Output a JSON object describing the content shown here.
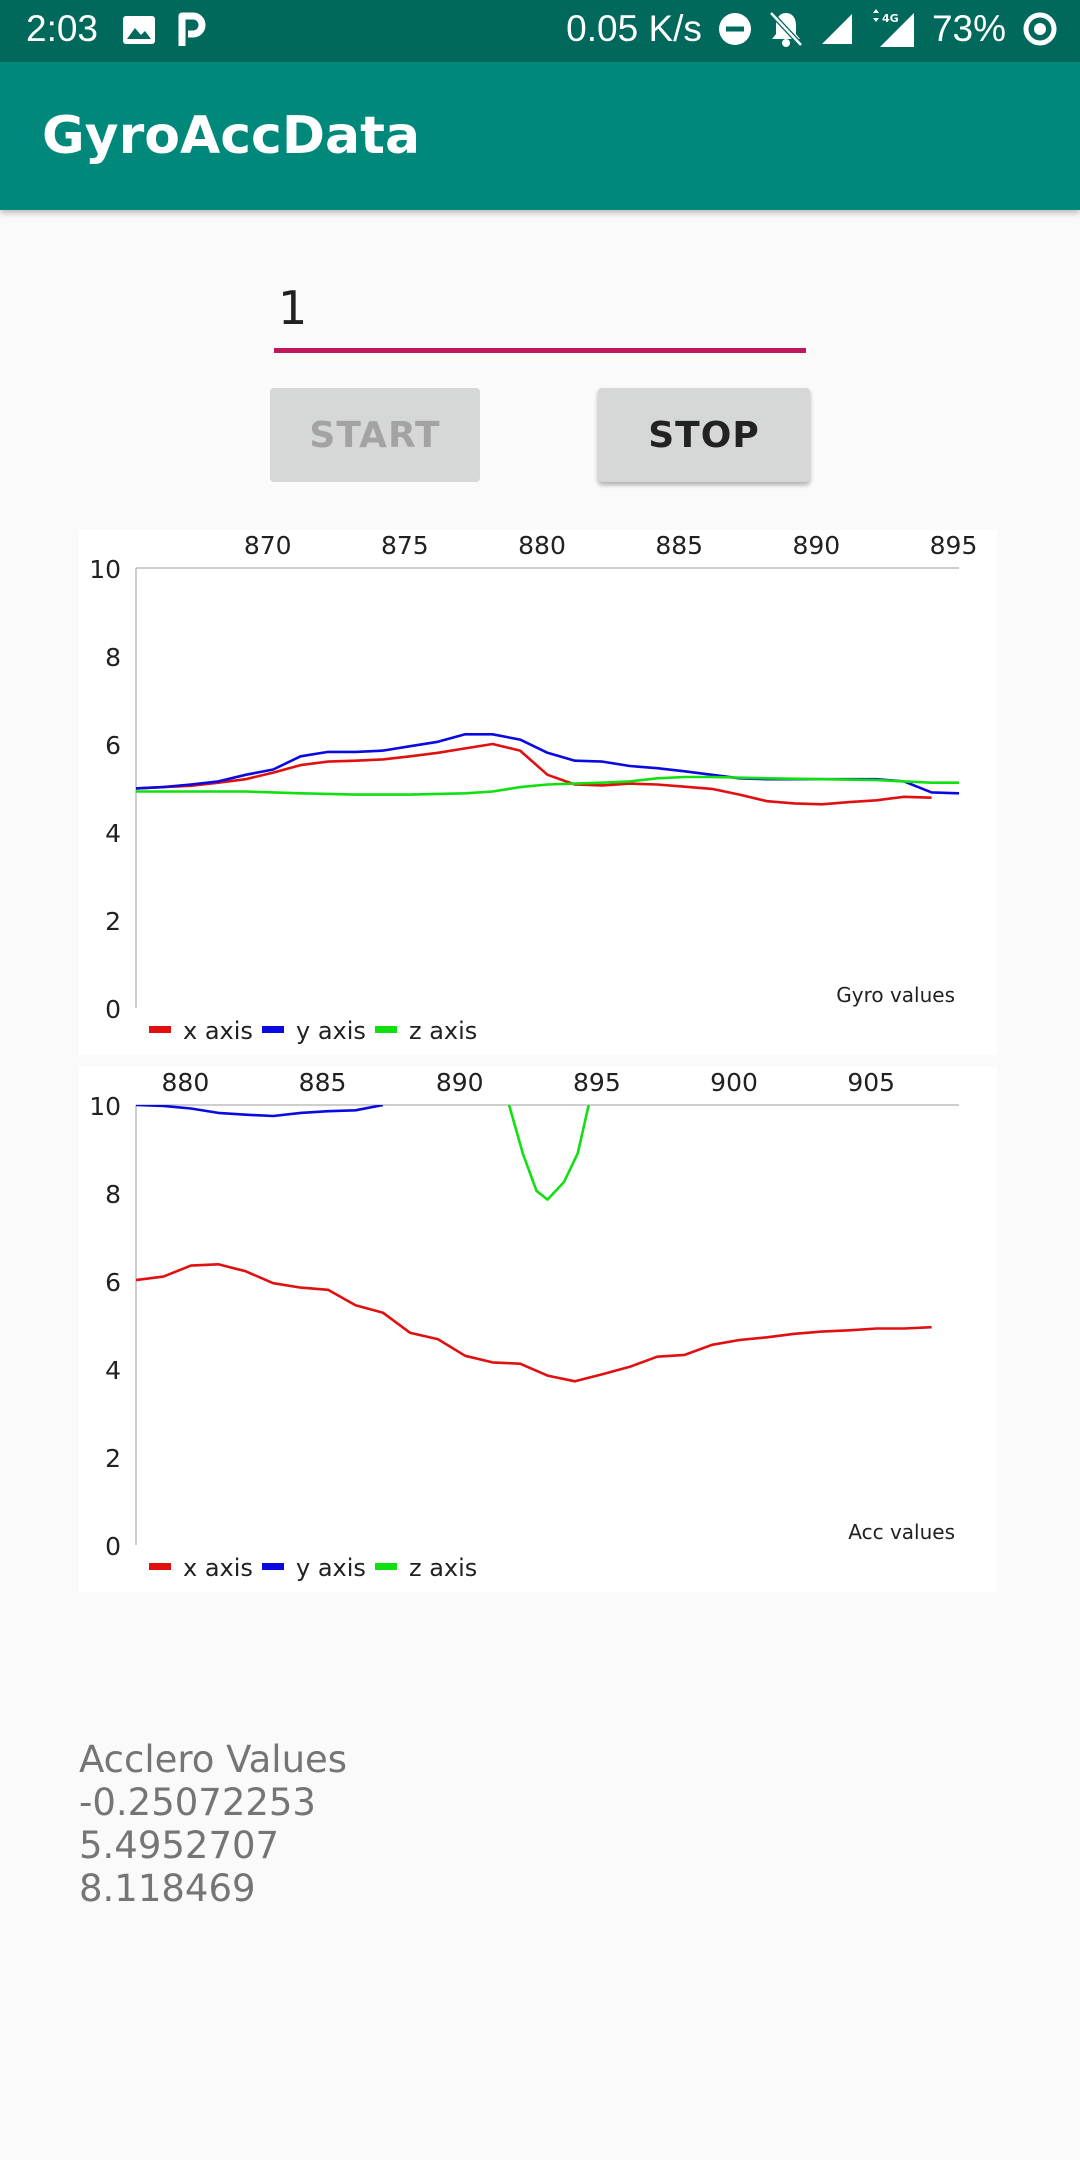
{
  "status_bar": {
    "time": "2:03",
    "speed": "0.05 K/s",
    "battery": "73%",
    "network_badge": "4G",
    "icons": [
      "image-icon",
      "parking-icon",
      "minus-circle-icon",
      "bell-off-icon",
      "signal-icon",
      "signal-4g-icon",
      "battery-saver-icon"
    ]
  },
  "app_bar": {
    "title": "GyroAccData"
  },
  "input": {
    "value": "1"
  },
  "buttons": {
    "start_label": "START",
    "stop_label": "STOP"
  },
  "colors": {
    "status_bar": "#00695c",
    "app_bar": "#00897b",
    "accent": "#c2185b",
    "x_axis": "#e01010",
    "y_axis": "#0a0ae0",
    "z_axis": "#10e010"
  },
  "chart_data": [
    {
      "type": "line",
      "description": "Gyro values",
      "xlim": [
        865.2,
        895.2
      ],
      "ylim": [
        0,
        10
      ],
      "x_ticks": [
        870,
        875,
        880,
        885,
        890,
        895
      ],
      "y_ticks": [
        0,
        2,
        4,
        6,
        8,
        10
      ],
      "legend": [
        "x axis",
        "y axis",
        "z axis"
      ],
      "series": [
        {
          "name": "x axis",
          "color": "#e01010",
          "x": [
            865.2,
            866.2,
            867.2,
            868.2,
            869.2,
            870.2,
            871.2,
            872.2,
            873.2,
            874.2,
            875.2,
            876.2,
            877.2,
            878.2,
            879.2,
            880.2,
            881.2,
            882.2,
            883.2,
            884.2,
            885.2,
            886.2,
            887.2,
            888.2,
            889.2,
            890.2,
            891.2,
            892.2,
            893.2,
            894.2
          ],
          "y": [
            4.99,
            5.02,
            5.05,
            5.12,
            5.2,
            5.35,
            5.52,
            5.6,
            5.62,
            5.65,
            5.72,
            5.8,
            5.9,
            6.0,
            5.85,
            5.3,
            5.08,
            5.06,
            5.1,
            5.08,
            5.03,
            4.98,
            4.85,
            4.7,
            4.65,
            4.63,
            4.68,
            4.72,
            4.8,
            4.78
          ]
        },
        {
          "name": "y axis",
          "color": "#0a0ae0",
          "x": [
            865.2,
            866.2,
            867.2,
            868.2,
            869.2,
            870.2,
            871.2,
            872.2,
            873.2,
            874.2,
            875.2,
            876.2,
            877.2,
            878.2,
            879.2,
            880.2,
            881.2,
            882.2,
            883.2,
            884.2,
            885.2,
            886.2,
            887.2,
            888.2,
            889.2,
            890.2,
            891.2,
            892.2,
            893.2,
            894.2,
            895.2
          ],
          "y": [
            4.99,
            5.02,
            5.08,
            5.15,
            5.3,
            5.42,
            5.72,
            5.82,
            5.82,
            5.85,
            5.95,
            6.05,
            6.22,
            6.22,
            6.1,
            5.8,
            5.62,
            5.6,
            5.5,
            5.45,
            5.38,
            5.3,
            5.22,
            5.2,
            5.2,
            5.2,
            5.2,
            5.2,
            5.15,
            4.9,
            4.88
          ]
        },
        {
          "name": "z axis",
          "color": "#10e010",
          "x": [
            865.2,
            867.2,
            869.2,
            871.2,
            873.2,
            875.2,
            877.2,
            878.2,
            879.2,
            880.2,
            881.2,
            882.2,
            883.2,
            884.2,
            885.2,
            886.2,
            888.2,
            890.2,
            892.2,
            893.2,
            894.2,
            895.2
          ],
          "y": [
            4.92,
            4.92,
            4.92,
            4.88,
            4.85,
            4.85,
            4.88,
            4.92,
            5.02,
            5.08,
            5.1,
            5.12,
            5.15,
            5.22,
            5.25,
            5.25,
            5.22,
            5.2,
            5.18,
            5.15,
            5.12,
            5.12
          ]
        }
      ]
    },
    {
      "type": "line",
      "description": "Acc values",
      "xlim": [
        878.2,
        908.2
      ],
      "ylim": [
        0,
        10
      ],
      "x_ticks": [
        880,
        885,
        890,
        895,
        900,
        905
      ],
      "y_ticks": [
        0,
        2,
        4,
        6,
        8,
        10
      ],
      "legend": [
        "x axis",
        "y axis",
        "z axis"
      ],
      "series": [
        {
          "name": "x axis",
          "color": "#e01010",
          "x": [
            878.2,
            879.2,
            880.2,
            881.2,
            882.2,
            883.2,
            884.2,
            885.2,
            886.2,
            887.2,
            888.2,
            889.2,
            890.2,
            891.2,
            892.2,
            893.2,
            894.2,
            895.2,
            896.2,
            897.2,
            898.2,
            899.2,
            900.2,
            901.2,
            902.2,
            903.2,
            904.2,
            905.2,
            906.2,
            907.2
          ],
          "y": [
            6.02,
            6.1,
            6.35,
            6.38,
            6.22,
            5.95,
            5.85,
            5.8,
            5.45,
            5.28,
            4.82,
            4.68,
            4.3,
            4.15,
            4.12,
            3.85,
            3.72,
            3.88,
            4.05,
            4.28,
            4.32,
            4.55,
            4.66,
            4.72,
            4.8,
            4.85,
            4.88,
            4.92,
            4.92,
            4.95
          ]
        },
        {
          "name": "y axis",
          "color": "#0a0ae0",
          "x": [
            878.2,
            879.2,
            880.2,
            881.2,
            882.2,
            883.2,
            884.2,
            885.2,
            886.2,
            887.2
          ],
          "y": [
            10.0,
            9.98,
            9.92,
            9.82,
            9.78,
            9.75,
            9.82,
            9.86,
            9.88,
            10.0
          ]
        },
        {
          "name": "z axis",
          "color": "#10e010",
          "x": [
            891.8,
            892.3,
            892.8,
            893.2,
            893.8,
            894.3,
            894.7
          ],
          "y": [
            10.0,
            8.9,
            8.05,
            7.85,
            8.25,
            8.9,
            10.0
          ]
        }
      ]
    }
  ],
  "values_panel": {
    "title": "Acclero Values",
    "lines": [
      "-0.25072253",
      "5.4952707",
      "8.118469"
    ]
  }
}
